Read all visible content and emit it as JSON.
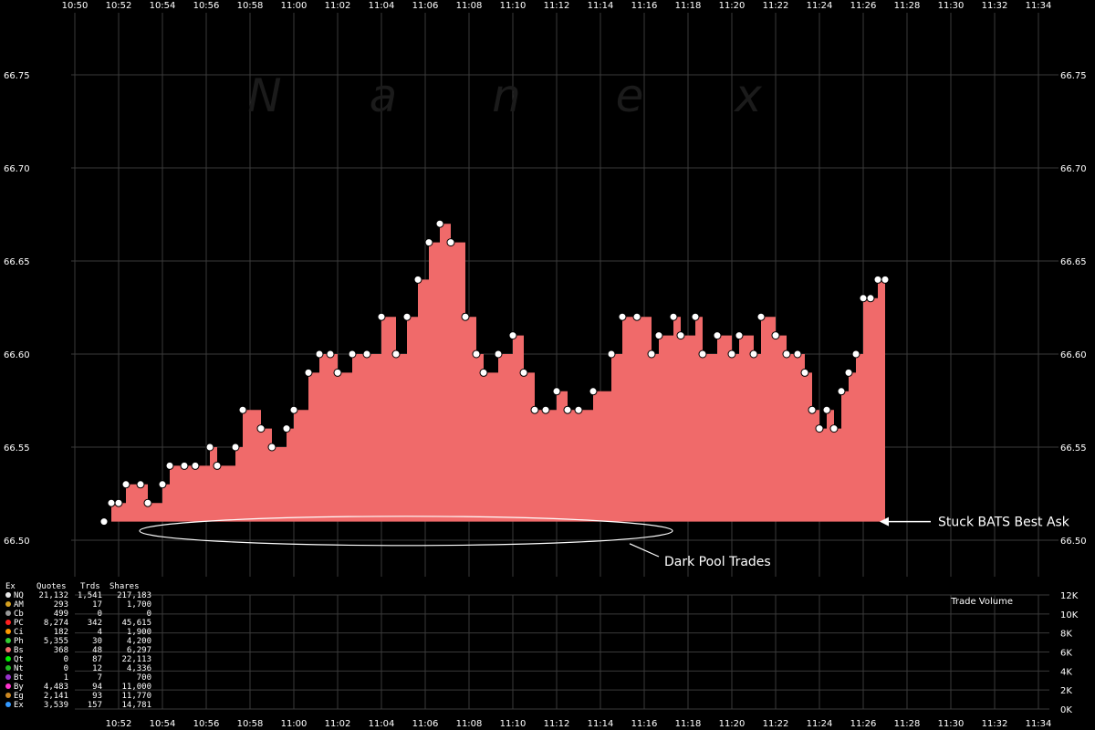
{
  "chart_data": {
    "type": "line",
    "title": "",
    "watermark": [
      "N",
      "a",
      "n",
      "e",
      "x"
    ],
    "x_time_labels": [
      "10:50",
      "10:52",
      "10:54",
      "10:56",
      "10:58",
      "11:00",
      "11:02",
      "11:04",
      "11:06",
      "11:08",
      "11:10",
      "11:12",
      "11:14",
      "11:16",
      "11:18",
      "11:20",
      "11:22",
      "11:24",
      "11:26",
      "11:28",
      "11:30",
      "11:32",
      "11:34"
    ],
    "y_price_ticks": [
      "66.75",
      "66.70",
      "66.65",
      "66.60",
      "66.55",
      "66.50"
    ],
    "ylim": [
      66.5,
      66.76
    ],
    "grid": true,
    "series": [
      {
        "name": "Bs",
        "color": "#f06a6a",
        "times": [
          "10:51:20",
          "10:51:40",
          "10:52:00",
          "10:52:20",
          "10:53:00",
          "10:53:20",
          "10:54:00",
          "10:54:20",
          "10:55:00",
          "10:55:30",
          "10:56:10",
          "10:56:30",
          "10:57:20",
          "10:57:40",
          "10:58:30",
          "10:59:00",
          "10:59:40",
          "11:00:00",
          "11:00:40",
          "11:01:10",
          "11:01:40",
          "11:02:00",
          "11:02:40",
          "11:03:20",
          "11:04:00",
          "11:04:40",
          "11:05:10",
          "11:05:40",
          "11:06:10",
          "11:06:40",
          "11:07:10",
          "11:07:50",
          "11:08:20",
          "11:08:40",
          "11:09:20",
          "11:10:00",
          "11:10:30",
          "11:11:00",
          "11:11:30",
          "11:12:00",
          "11:12:30",
          "11:13:00",
          "11:13:40",
          "11:14:30",
          "11:15:00",
          "11:15:40",
          "11:16:20",
          "11:16:40",
          "11:17:20",
          "11:17:40",
          "11:18:20",
          "11:18:40",
          "11:19:20",
          "11:20:00",
          "11:20:20",
          "11:21:00",
          "11:21:20",
          "11:22:00",
          "11:22:30",
          "11:23:00",
          "11:23:20",
          "11:23:40",
          "11:24:00",
          "11:24:20",
          "11:24:40",
          "11:25:00",
          "11:25:20",
          "11:25:40",
          "11:26:00",
          "11:26:20",
          "11:26:40",
          "11:27:00"
        ],
        "values": [
          66.51,
          66.52,
          66.52,
          66.53,
          66.53,
          66.52,
          66.53,
          66.54,
          66.54,
          66.54,
          66.55,
          66.54,
          66.55,
          66.57,
          66.56,
          66.55,
          66.56,
          66.57,
          66.59,
          66.6,
          66.6,
          66.59,
          66.6,
          66.6,
          66.62,
          66.6,
          66.62,
          66.64,
          66.66,
          66.67,
          66.66,
          66.62,
          66.6,
          66.59,
          66.6,
          66.61,
          66.59,
          66.57,
          66.57,
          66.58,
          66.57,
          66.57,
          66.58,
          66.6,
          66.62,
          66.62,
          66.6,
          66.61,
          66.62,
          66.61,
          66.62,
          66.6,
          66.61,
          66.6,
          66.61,
          66.6,
          66.62,
          66.61,
          66.6,
          66.6,
          66.59,
          66.57,
          66.56,
          66.57,
          66.56,
          66.58,
          66.59,
          66.6,
          66.63,
          66.63,
          66.64,
          66.64
        ]
      }
    ],
    "baseline_value": 66.51,
    "annotations": [
      {
        "text": "Stuck BATS Best Ask",
        "time": "11:26:40",
        "value": 66.51
      },
      {
        "text": "Dark Pool Trades",
        "time": "11:09:00",
        "value": 66.505
      }
    ],
    "volume_panel": {
      "label": "Trade Volume",
      "y_ticks": [
        "12K",
        "10K",
        "8K",
        "6K",
        "4K",
        "2K",
        "0K"
      ],
      "ylim": [
        0,
        12000
      ],
      "x_time_labels": [
        "10:52",
        "10:54",
        "10:56",
        "10:58",
        "11:00",
        "11:02",
        "11:04",
        "11:06",
        "11:08",
        "11:10",
        "11:12",
        "11:14",
        "11:16",
        "11:18",
        "11:20",
        "11:22",
        "11:24",
        "11:26",
        "11:28",
        "11:30",
        "11:32",
        "11:34"
      ]
    },
    "legend_table": {
      "headers": [
        "Ex",
        "Quotes",
        "Trds",
        "Shares"
      ],
      "rows": [
        {
          "ex": "NQ",
          "quotes": "21,132",
          "trds": "1,541",
          "shares": "217,183",
          "color": "#e8e8e8"
        },
        {
          "ex": "AM",
          "quotes": "293",
          "trds": "17",
          "shares": "1,700",
          "color": "#d4a020"
        },
        {
          "ex": "Cb",
          "quotes": "499",
          "trds": "0",
          "shares": "0",
          "color": "#999999"
        },
        {
          "ex": "PC",
          "quotes": "8,274",
          "trds": "342",
          "shares": "45,615",
          "color": "#ff2020"
        },
        {
          "ex": "Ci",
          "quotes": "182",
          "trds": "4",
          "shares": "1,900",
          "color": "#ff9900"
        },
        {
          "ex": "Ph",
          "quotes": "5,355",
          "trds": "30",
          "shares": "4,200",
          "color": "#33cc33"
        },
        {
          "ex": "Bs",
          "quotes": "368",
          "trds": "48",
          "shares": "6,297",
          "color": "#f06a6a"
        },
        {
          "ex": "Qt",
          "quotes": "0",
          "trds": "87",
          "shares": "22,113",
          "color": "#00ee00"
        },
        {
          "ex": "Nt",
          "quotes": "0",
          "trds": "12",
          "shares": "4,336",
          "color": "#22bb22"
        },
        {
          "ex": "Bt",
          "quotes": "1",
          "trds": "7",
          "shares": "700",
          "color": "#9933cc"
        },
        {
          "ex": "By",
          "quotes": "4,483",
          "trds": "94",
          "shares": "11,000",
          "color": "#ff33cc"
        },
        {
          "ex": "Eg",
          "quotes": "2,141",
          "trds": "93",
          "shares": "11,770",
          "color": "#cc8822"
        },
        {
          "ex": "Ex",
          "quotes": "3,539",
          "trds": "157",
          "shares": "14,781",
          "color": "#3399ff"
        }
      ]
    }
  }
}
